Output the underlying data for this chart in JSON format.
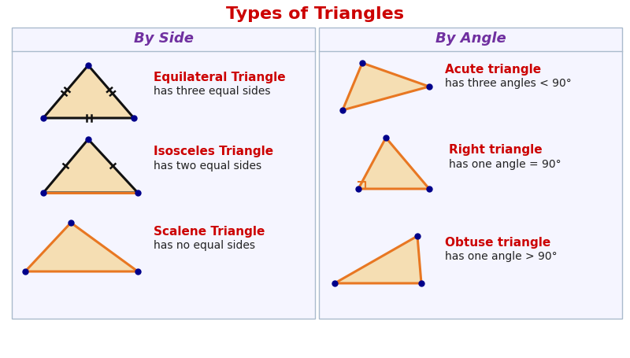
{
  "title": "Types of Triangles",
  "title_color": "#cc0000",
  "title_fontsize": 16,
  "col1_header": "By Side",
  "col2_header": "By Angle",
  "header_color": "#7030a0",
  "header_fontsize": 13,
  "red_color": "#cc0000",
  "black_color": "#222222",
  "bg_color": "#ffffff",
  "panel_bg": "#f5f5ff",
  "triangle_fill": "#f5deb3",
  "triangle_edge_black": "#111111",
  "triangle_edge_orange": "#e87722",
  "dot_color": "#00008b",
  "text_fontsize": 10,
  "label_fontsize": 11,
  "equilateral_label": "Equilateral Triangle",
  "equilateral_desc": "has three equal sides",
  "isosceles_label": "Isosceles Triangle",
  "isosceles_desc": "has two equal sides",
  "scalene_label": "Scalene Triangle",
  "scalene_desc": "has no equal sides",
  "acute_label": "Acute triangle",
  "acute_desc": "has three angles < 90°",
  "right_label": "Right triangle",
  "right_desc": "has one angle = 90°",
  "obtuse_label": "Obtuse triangle",
  "obtuse_desc": "has one angle > 90°",
  "panel_edge_color": "#aabbcc",
  "panel_lw": 1.0
}
